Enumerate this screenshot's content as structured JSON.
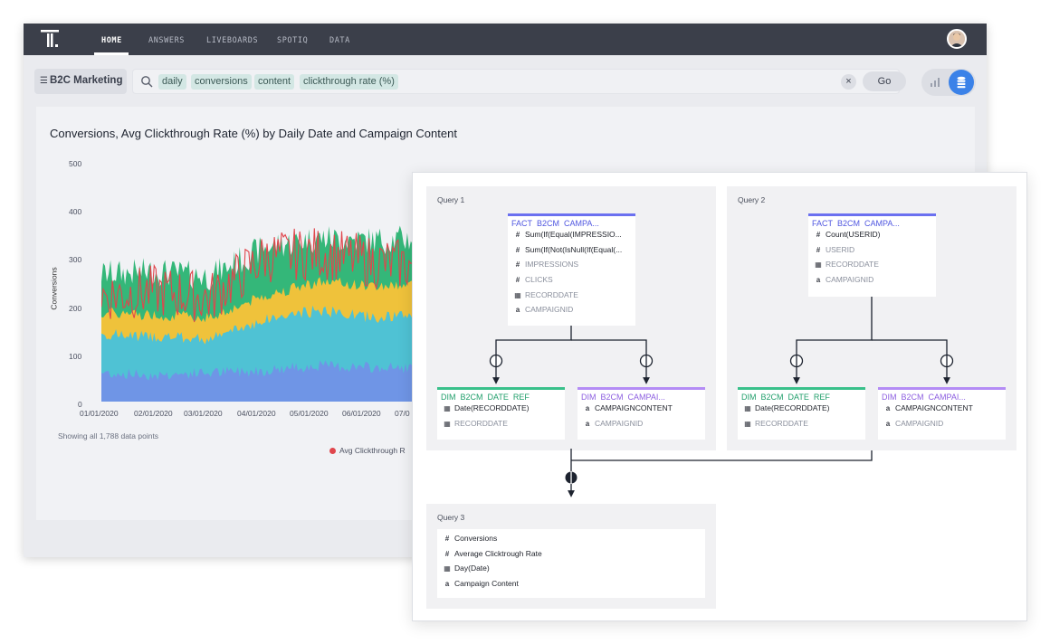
{
  "nav": {
    "logo_icon": "thoughtspot-logo-icon",
    "items": [
      "HOME",
      "ANSWERS",
      "LIVEBOARDS",
      "SPOTIQ",
      "DATA"
    ],
    "active": "HOME"
  },
  "search": {
    "source": "B2C Marketing",
    "tokens": [
      "daily",
      "conversions",
      "content",
      "clickthrough rate (%)"
    ],
    "clear_icon": "×",
    "go_label": "Go"
  },
  "chart": {
    "title": "Conversions, Avg Clickthrough Rate (%) by Daily Date and Campaign Content",
    "footnote": "Showing all 1,788 data points",
    "legend_item": "Avg Clickthrough R",
    "colors": {
      "blue": "#6f95e6",
      "teal": "#4fc2d4",
      "yellow": "#efc23b",
      "green": "#34b779",
      "line": "#e0464c"
    }
  },
  "chart_data": {
    "type": "area",
    "ylabel": "Conversions",
    "ylim": [
      0,
      500
    ],
    "y_ticks": [
      "500",
      "400",
      "300",
      "200",
      "100",
      "0"
    ],
    "x_ticks": [
      "01/01/2020",
      "02/01/2020",
      "03/01/2020",
      "04/01/2020",
      "05/01/2020",
      "06/01/2020",
      "07/0"
    ],
    "series": [
      {
        "name": "",
        "color": "#6f95e6",
        "approx_values": [
          60,
          55,
          60,
          65,
          75,
          70,
          70
        ]
      },
      {
        "name": "",
        "color": "#4fc2d4",
        "approx_values": [
          140,
          135,
          130,
          170,
          190,
          175,
          180
        ]
      },
      {
        "name": "",
        "color": "#efc23b",
        "approx_values": [
          185,
          180,
          175,
          220,
          250,
          240,
          245
        ]
      },
      {
        "name": "",
        "color": "#34b779",
        "approx_values": [
          265,
          270,
          260,
          320,
          340,
          335,
          340
        ]
      },
      {
        "name": "Avg Clickthrough R",
        "color": "#e0464c",
        "approx_values": [
          220,
          230,
          215,
          300,
          310,
          290,
          280
        ]
      }
    ]
  },
  "diagram": {
    "query1": {
      "label": "Query 1",
      "fact": {
        "name": "FACT_B2CM_CAMPA...",
        "fields": [
          {
            "icon": "#",
            "text": "Sum(If(Equal(IMPRESSIO...",
            "style": "dark"
          },
          {
            "icon": "#",
            "text": "Sum(If(Not(IsNull(If(Equal(...",
            "style": "dark"
          },
          {
            "icon": "#",
            "text": "IMPRESSIONS",
            "style": "grey"
          },
          {
            "icon": "#",
            "text": "CLICKS",
            "style": "grey"
          },
          {
            "icon": "▦",
            "text": "RECORDDATE",
            "style": "grey"
          },
          {
            "icon": "a",
            "text": "CAMPAIGNID",
            "style": "grey"
          }
        ]
      },
      "dim_date": {
        "name": "DIM_B2CM_DATE_REF",
        "fields": [
          {
            "icon": "▦",
            "text": "Date(RECORDDATE)",
            "style": "dark"
          },
          {
            "icon": "▦",
            "text": "RECORDDATE",
            "style": "grey"
          }
        ]
      },
      "dim_campaign": {
        "name": "DIM_B2CM_CAMPAI...",
        "fields": [
          {
            "icon": "a",
            "text": "CAMPAIGNCONTENT",
            "style": "dark"
          },
          {
            "icon": "a",
            "text": "CAMPAIGNID",
            "style": "grey"
          }
        ]
      }
    },
    "query2": {
      "label": "Query 2",
      "fact": {
        "name": "FACT_B2CM_CAMPA...",
        "fields": [
          {
            "icon": "#",
            "text": "Count(USERID)",
            "style": "dark"
          },
          {
            "icon": "#",
            "text": "USERID",
            "style": "grey"
          },
          {
            "icon": "▦",
            "text": "RECORDDATE",
            "style": "grey"
          },
          {
            "icon": "a",
            "text": "CAMPAIGNID",
            "style": "grey"
          }
        ]
      },
      "dim_date": {
        "name": "DIM_B2CM_DATE_REF",
        "fields": [
          {
            "icon": "▦",
            "text": "Date(RECORDDATE)",
            "style": "dark"
          },
          {
            "icon": "▦",
            "text": "RECORDDATE",
            "style": "grey"
          }
        ]
      },
      "dim_campaign": {
        "name": "DIM_B2CM_CAMPAI...",
        "fields": [
          {
            "icon": "a",
            "text": "CAMPAIGNCONTENT",
            "style": "dark"
          },
          {
            "icon": "a",
            "text": "CAMPAIGNID",
            "style": "grey"
          }
        ]
      }
    },
    "query3": {
      "label": "Query 3",
      "fields": [
        {
          "icon": "#",
          "text": "Conversions",
          "style": "dark"
        },
        {
          "icon": "#",
          "text": "Average Clicktrough Rate",
          "style": "dark"
        },
        {
          "icon": "▦",
          "text": "Day(Date)",
          "style": "dark"
        },
        {
          "icon": "a",
          "text": "Campaign Content",
          "style": "dark"
        }
      ]
    }
  }
}
